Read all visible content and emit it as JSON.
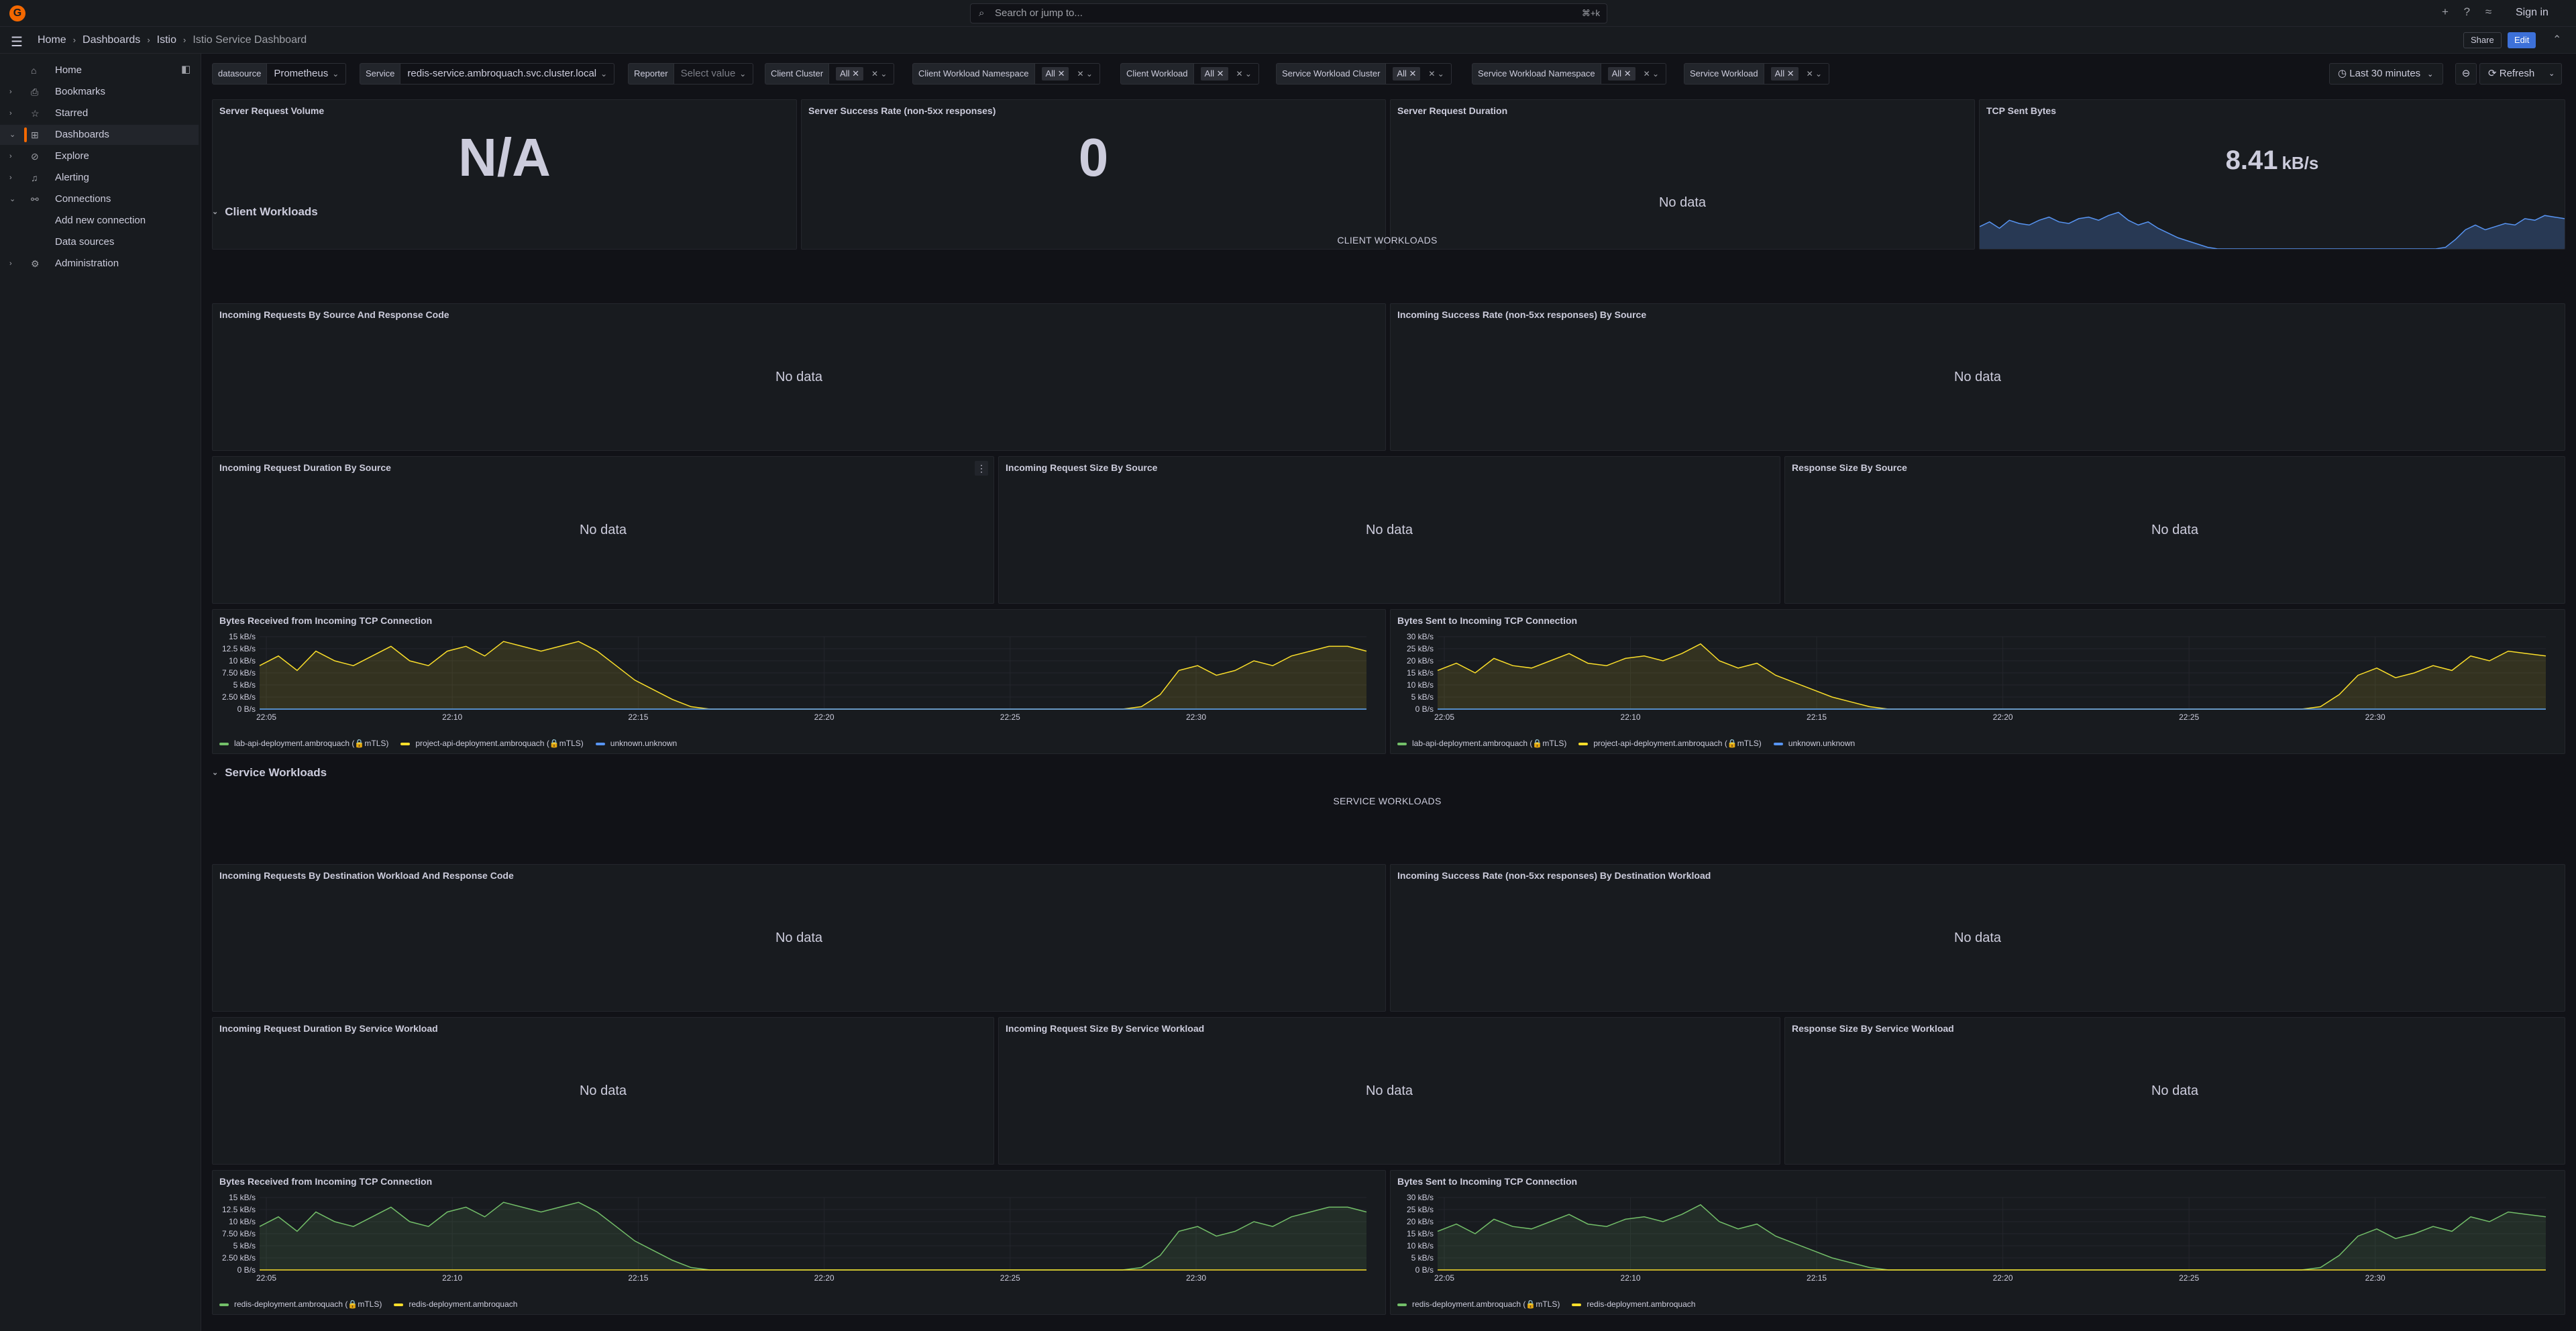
{
  "topbar": {
    "logo": "G",
    "search_placeholder": "Search or jump to...",
    "search_shortcut": "⌘+k",
    "plus_icon": "+",
    "help_icon": "?",
    "rss_icon": "≈",
    "signin": "Sign in"
  },
  "breadcrumb": {
    "items": [
      "Home",
      "Dashboards",
      "Istio",
      "Istio Service Dashboard"
    ]
  },
  "actions": {
    "share": "Share",
    "edit": "Edit"
  },
  "sidebar": {
    "items": [
      {
        "label": "Home",
        "icon": "home-icon"
      },
      {
        "label": "Bookmarks",
        "icon": "bookmark-icon"
      },
      {
        "label": "Starred",
        "icon": "star-icon"
      },
      {
        "label": "Dashboards",
        "icon": "apps-icon"
      },
      {
        "label": "Explore",
        "icon": "compass-icon"
      },
      {
        "label": "Alerting",
        "icon": "bell-icon"
      },
      {
        "label": "Connections",
        "icon": "link-icon"
      },
      {
        "label": "Add new connection",
        "icon": ""
      },
      {
        "label": "Data sources",
        "icon": ""
      },
      {
        "label": "Administration",
        "icon": "cog-icon"
      }
    ]
  },
  "variables": {
    "datasource": {
      "label": "datasource",
      "value": "Prometheus"
    },
    "service": {
      "label": "Service",
      "value": "redis-service.ambroquach.svc.cluster.local"
    },
    "reporter": {
      "label": "Reporter",
      "placeholder": "Select value"
    },
    "client_cluster": {
      "label": "Client Cluster",
      "value": "All"
    },
    "client_ns": {
      "label": "Client Workload Namespace",
      "value": "All"
    },
    "client_workload": {
      "label": "Client Workload",
      "value": "All"
    },
    "svc_cluster": {
      "label": "Service Workload Cluster",
      "value": "All"
    },
    "svc_ns": {
      "label": "Service Workload Namespace",
      "value": "All"
    },
    "svc_workload": {
      "label": "Service Workload",
      "value": "All"
    }
  },
  "time": {
    "range": "Last 30 minutes",
    "refresh": "Refresh"
  },
  "stats": {
    "req_volume": {
      "title": "Server Request Volume",
      "value": "N/A"
    },
    "success_rate": {
      "title": "Server Success Rate (non-5xx responses)",
      "value": "0"
    },
    "req_duration": {
      "title": "Server Request Duration",
      "value": "No data"
    },
    "tcp_sent": {
      "title": "TCP Sent Bytes",
      "value": "8.41",
      "unit": "kB/s"
    }
  },
  "rows": {
    "client": {
      "title": "Client Workloads",
      "text": "CLIENT WORKLOADS"
    },
    "service": {
      "title": "Service Workloads",
      "text": "SERVICE WORKLOADS"
    }
  },
  "panels": {
    "c_req_src": "Incoming Requests By Source And Response Code",
    "c_success_src": "Incoming Success Rate (non-5xx responses) By Source",
    "c_duration_src": "Incoming Request Duration By Source",
    "c_size_src": "Incoming Request Size By Source",
    "c_resp_src": "Response Size By Source",
    "c_tcp_recv": "Bytes Received from Incoming TCP Connection",
    "c_tcp_sent": "Bytes Sent to Incoming TCP Connection",
    "s_req_dest": "Incoming Requests By Destination Workload And Response Code",
    "s_success_dest": "Incoming Success Rate (non-5xx responses) By Destination Workload",
    "s_duration": "Incoming Request Duration By Service Workload",
    "s_size": "Incoming Request Size By Service Workload",
    "s_resp": "Response Size By Service Workload",
    "s_tcp_recv": "Bytes Received from Incoming TCP Connection",
    "s_tcp_sent": "Bytes Sent to Incoming TCP Connection",
    "no_data": "No data"
  },
  "colors": {
    "green": "#73bf69",
    "yellow": "#fade2a",
    "blue": "#5794f2",
    "accent": "#f46800"
  },
  "chart_data": [
    {
      "id": "c_tcp_recv",
      "type": "area",
      "x_ticks": [
        "22:05",
        "22:10",
        "22:15",
        "22:20",
        "22:25",
        "22:30"
      ],
      "y_ticks": [
        "15 kB/s",
        "12.5 kB/s",
        "10 kB/s",
        "7.50 kB/s",
        "5 kB/s",
        "2.50 kB/s",
        "0 B/s"
      ],
      "ylim": [
        0,
        15
      ],
      "series": [
        {
          "name": "lab-api-deployment.ambroquach (🔒mTLS)",
          "color": "#73bf69",
          "values": [
            0,
            0,
            0,
            0,
            0,
            0,
            0,
            0,
            0,
            0,
            0,
            0,
            0,
            0,
            0,
            0,
            0,
            0,
            0,
            0,
            0,
            0,
            0,
            0,
            0,
            0,
            0,
            0,
            0,
            0,
            0,
            0,
            0,
            0,
            0,
            0,
            0,
            0,
            0,
            0,
            0,
            0,
            0,
            0,
            0,
            0,
            0,
            0,
            0,
            0,
            0,
            0,
            0,
            0,
            0,
            0,
            0,
            0,
            0,
            0
          ]
        },
        {
          "name": "project-api-deployment.ambroquach (🔒mTLS)",
          "color": "#fade2a",
          "values": [
            9,
            11,
            8,
            12,
            10,
            9,
            11,
            13,
            10,
            9,
            12,
            13,
            11,
            14,
            13,
            12,
            13,
            14,
            12,
            9,
            6,
            4,
            2,
            0.5,
            0,
            0,
            0,
            0,
            0,
            0,
            0,
            0,
            0,
            0,
            0,
            0,
            0,
            0,
            0,
            0,
            0,
            0,
            0,
            0,
            0,
            0,
            0,
            0.5,
            3,
            8,
            9,
            7,
            8,
            10,
            9,
            11,
            12,
            13,
            13,
            12
          ]
        },
        {
          "name": "unknown.unknown",
          "color": "#5794f2",
          "values": [
            0,
            0,
            0,
            0,
            0,
            0,
            0,
            0,
            0,
            0,
            0,
            0,
            0,
            0,
            0,
            0,
            0,
            0,
            0,
            0,
            0,
            0,
            0,
            0,
            0,
            0,
            0,
            0,
            0,
            0,
            0,
            0,
            0,
            0,
            0,
            0,
            0,
            0,
            0,
            0,
            0,
            0,
            0,
            0,
            0,
            0,
            0,
            0,
            0,
            0,
            0,
            0,
            0,
            0,
            0,
            0,
            0,
            0,
            0,
            0
          ]
        }
      ]
    },
    {
      "id": "c_tcp_sent",
      "type": "area",
      "x_ticks": [
        "22:05",
        "22:10",
        "22:15",
        "22:20",
        "22:25",
        "22:30"
      ],
      "y_ticks": [
        "30 kB/s",
        "25 kB/s",
        "20 kB/s",
        "15 kB/s",
        "10 kB/s",
        "5 kB/s",
        "0 B/s"
      ],
      "ylim": [
        0,
        30
      ],
      "series": [
        {
          "name": "lab-api-deployment.ambroquach (🔒mTLS)",
          "color": "#73bf69",
          "values": [
            0,
            0,
            0,
            0,
            0,
            0,
            0,
            0,
            0,
            0,
            0,
            0,
            0,
            0,
            0,
            0,
            0,
            0,
            0,
            0,
            0,
            0,
            0,
            0,
            0,
            0,
            0,
            0,
            0,
            0,
            0,
            0,
            0,
            0,
            0,
            0,
            0,
            0,
            0,
            0,
            0,
            0,
            0,
            0,
            0,
            0,
            0,
            0,
            0,
            0,
            0,
            0,
            0,
            0,
            0,
            0,
            0,
            0,
            0,
            0
          ]
        },
        {
          "name": "project-api-deployment.ambroquach (🔒mTLS)",
          "color": "#fade2a",
          "values": [
            16,
            19,
            15,
            21,
            18,
            17,
            20,
            23,
            19,
            18,
            21,
            22,
            20,
            23,
            27,
            20,
            17,
            19,
            14,
            11,
            8,
            5,
            3,
            1,
            0,
            0,
            0,
            0,
            0,
            0,
            0,
            0,
            0,
            0,
            0,
            0,
            0,
            0,
            0,
            0,
            0,
            0,
            0,
            0,
            0,
            0,
            0,
            1,
            6,
            14,
            17,
            13,
            15,
            18,
            16,
            22,
            20,
            24,
            23,
            22
          ]
        },
        {
          "name": "unknown.unknown",
          "color": "#5794f2",
          "values": [
            0,
            0,
            0,
            0,
            0,
            0,
            0,
            0,
            0,
            0,
            0,
            0,
            0,
            0,
            0,
            0,
            0,
            0,
            0,
            0,
            0,
            0,
            0,
            0,
            0,
            0,
            0,
            0,
            0,
            0,
            0,
            0,
            0,
            0,
            0,
            0,
            0,
            0,
            0,
            0,
            0,
            0,
            0,
            0,
            0,
            0,
            0,
            0,
            0,
            0,
            0,
            0,
            0,
            0,
            0,
            0,
            0,
            0,
            0,
            0
          ]
        }
      ]
    },
    {
      "id": "s_tcp_recv",
      "type": "area",
      "x_ticks": [
        "22:05",
        "22:10",
        "22:15",
        "22:20",
        "22:25",
        "22:30"
      ],
      "y_ticks": [
        "15 kB/s",
        "12.5 kB/s",
        "10 kB/s",
        "7.50 kB/s",
        "5 kB/s",
        "2.50 kB/s",
        "0 B/s"
      ],
      "ylim": [
        0,
        15
      ],
      "series": [
        {
          "name": "redis-deployment.ambroquach (🔒mTLS)",
          "color": "#73bf69",
          "values": [
            9,
            11,
            8,
            12,
            10,
            9,
            11,
            13,
            10,
            9,
            12,
            13,
            11,
            14,
            13,
            12,
            13,
            14,
            12,
            9,
            6,
            4,
            2,
            0.5,
            0,
            0,
            0,
            0,
            0,
            0,
            0,
            0,
            0,
            0,
            0,
            0,
            0,
            0,
            0,
            0,
            0,
            0,
            0,
            0,
            0,
            0,
            0,
            0.5,
            3,
            8,
            9,
            7,
            8,
            10,
            9,
            11,
            12,
            13,
            13,
            12
          ]
        },
        {
          "name": "redis-deployment.ambroquach",
          "color": "#fade2a",
          "values": [
            0,
            0,
            0,
            0,
            0,
            0,
            0,
            0,
            0,
            0,
            0,
            0,
            0,
            0,
            0,
            0,
            0,
            0,
            0,
            0,
            0,
            0,
            0,
            0,
            0,
            0,
            0,
            0,
            0,
            0,
            0,
            0,
            0,
            0,
            0,
            0,
            0,
            0,
            0,
            0,
            0,
            0,
            0,
            0,
            0,
            0,
            0,
            0,
            0,
            0,
            0,
            0,
            0,
            0,
            0,
            0,
            0,
            0,
            0,
            0
          ]
        }
      ]
    },
    {
      "id": "s_tcp_sent",
      "type": "area",
      "x_ticks": [
        "22:05",
        "22:10",
        "22:15",
        "22:20",
        "22:25",
        "22:30"
      ],
      "y_ticks": [
        "30 kB/s",
        "25 kB/s",
        "20 kB/s",
        "15 kB/s",
        "10 kB/s",
        "5 kB/s",
        "0 B/s"
      ],
      "ylim": [
        0,
        30
      ],
      "series": [
        {
          "name": "redis-deployment.ambroquach (🔒mTLS)",
          "color": "#73bf69",
          "values": [
            16,
            19,
            15,
            21,
            18,
            17,
            20,
            23,
            19,
            18,
            21,
            22,
            20,
            23,
            27,
            20,
            17,
            19,
            14,
            11,
            8,
            5,
            3,
            1,
            0,
            0,
            0,
            0,
            0,
            0,
            0,
            0,
            0,
            0,
            0,
            0,
            0,
            0,
            0,
            0,
            0,
            0,
            0,
            0,
            0,
            0,
            0,
            1,
            6,
            14,
            17,
            13,
            15,
            18,
            16,
            22,
            20,
            24,
            23,
            22
          ]
        },
        {
          "name": "redis-deployment.ambroquach",
          "color": "#fade2a",
          "values": [
            0,
            0,
            0,
            0,
            0,
            0,
            0,
            0,
            0,
            0,
            0,
            0,
            0,
            0,
            0,
            0,
            0,
            0,
            0,
            0,
            0,
            0,
            0,
            0,
            0,
            0,
            0,
            0,
            0,
            0,
            0,
            0,
            0,
            0,
            0,
            0,
            0,
            0,
            0,
            0,
            0,
            0,
            0,
            0,
            0,
            0,
            0,
            0,
            0,
            0,
            0,
            0,
            0,
            0,
            0,
            0,
            0,
            0,
            0,
            0
          ]
        }
      ]
    },
    {
      "id": "tcp_sent_spark",
      "type": "area",
      "series": [
        {
          "name": "TCP Sent Bytes",
          "color": "#5794f2",
          "values": [
            14,
            17,
            13,
            18,
            16,
            15,
            18,
            20,
            17,
            16,
            19,
            20,
            18,
            21,
            23,
            18,
            15,
            17,
            13,
            10,
            7,
            5,
            3,
            1,
            0,
            0,
            0,
            0,
            0,
            0,
            0,
            0,
            0,
            0,
            0,
            0,
            0,
            0,
            0,
            0,
            0,
            0,
            0,
            0,
            0,
            0,
            0,
            1,
            6,
            12,
            15,
            12,
            14,
            16,
            15,
            19,
            18,
            21,
            20,
            19
          ]
        }
      ]
    }
  ]
}
